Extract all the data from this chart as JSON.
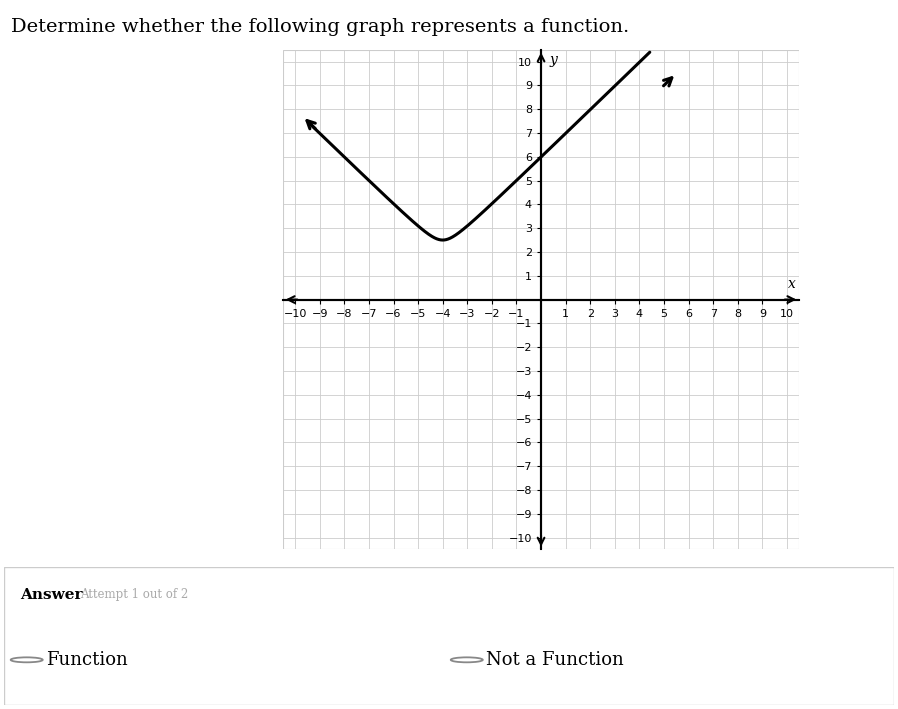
{
  "title": "Determine whether the following graph represents a function.",
  "xlabel": "x",
  "ylabel": "y",
  "xlim": [
    -10.5,
    10.5
  ],
  "ylim": [
    -10.5,
    10.5
  ],
  "xticks": [
    -10,
    -9,
    -8,
    -7,
    -6,
    -5,
    -4,
    -3,
    -2,
    -1,
    1,
    2,
    3,
    4,
    5,
    6,
    7,
    8,
    9,
    10
  ],
  "yticks": [
    -10,
    -9,
    -8,
    -7,
    -6,
    -5,
    -4,
    -3,
    -2,
    -1,
    1,
    2,
    3,
    4,
    5,
    6,
    7,
    8,
    9,
    10
  ],
  "curve_vertex_x": -4,
  "curve_vertex_y": 2.5,
  "curve_color": "#000000",
  "curve_linewidth": 2.2,
  "grid_color": "#cccccc",
  "grid_linewidth": 0.6,
  "plot_bg_color": "#ffffff",
  "plot_border_color": "#cccccc",
  "axis_color": "#000000",
  "tick_label_size": 8,
  "answer_label": "Answer",
  "attempt_label": "Attempt 1 out of 2",
  "choice1": "Function",
  "choice2": "Not a Function",
  "fig_bg": "#ffffff",
  "answer_bg": "#f0f2f5",
  "answer_border": "#cccccc",
  "title_fontsize": 14,
  "answer_fontsize": 13,
  "left_end_x": -9.3,
  "left_end_y": 7.3,
  "right_end_x": 5.3,
  "right_end_y": 9.3
}
